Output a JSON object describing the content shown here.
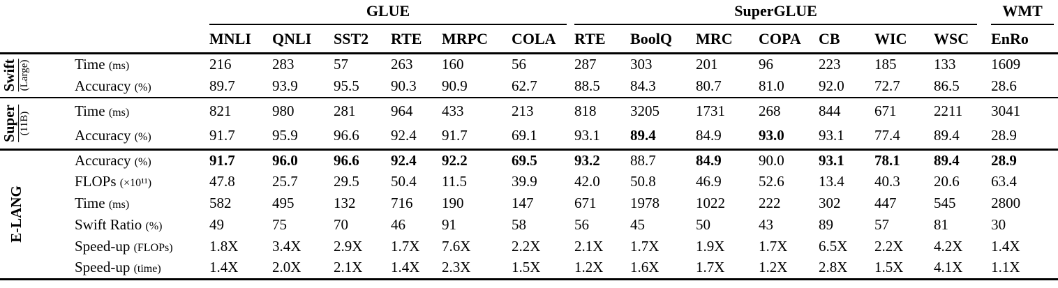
{
  "table": {
    "column_groups": [
      {
        "label": "GLUE",
        "span": 6
      },
      {
        "label": "SuperGLUE",
        "span": 7
      },
      {
        "label": "WMT",
        "span": 1
      }
    ],
    "columns": [
      "MNLI",
      "QNLI",
      "SST2",
      "RTE",
      "MRPC",
      "COLA",
      "RTE",
      "BoolQ",
      "MRC",
      "COPA",
      "CB",
      "WIC",
      "WSC",
      "EnRo"
    ],
    "sections": [
      {
        "group": "Swift",
        "group_suffix": "(Large)",
        "rows": [
          {
            "label": "Time",
            "suffix": "(ms)",
            "values": [
              "216",
              "283",
              "57",
              "263",
              "160",
              "56",
              "287",
              "303",
              "201",
              "96",
              "223",
              "185",
              "133",
              "1609"
            ],
            "bold": []
          },
          {
            "label": "Accuracy",
            "suffix": "(%)",
            "values": [
              "89.7",
              "93.9",
              "95.5",
              "90.3",
              "90.9",
              "62.7",
              "88.5",
              "84.3",
              "80.7",
              "81.0",
              "92.0",
              "72.7",
              "86.5",
              "28.6"
            ],
            "bold": []
          }
        ]
      },
      {
        "group": "Super",
        "group_suffix": "(11B)",
        "rows": [
          {
            "label": "Time",
            "suffix": "(ms)",
            "values": [
              "821",
              "980",
              "281",
              "964",
              "433",
              "213",
              "818",
              "3205",
              "1731",
              "268",
              "844",
              "671",
              "2211",
              "3041"
            ],
            "bold": []
          },
          {
            "label": "Accuracy",
            "suffix": "(%)",
            "values": [
              "91.7",
              "95.9",
              "96.6",
              "92.4",
              "91.7",
              "69.1",
              "93.1",
              "89.4",
              "84.9",
              "93.0",
              "93.1",
              "77.4",
              "89.4",
              "28.9"
            ],
            "bold": [
              7,
              9
            ]
          }
        ]
      },
      {
        "group": "E-LANG",
        "group_suffix": "",
        "rows": [
          {
            "label": "Accuracy",
            "suffix": "(%)",
            "values": [
              "91.7",
              "96.0",
              "96.6",
              "92.4",
              "92.2",
              "69.5",
              "93.2",
              "88.7",
              "84.9",
              "90.0",
              "93.1",
              "78.1",
              "89.4",
              "28.9"
            ],
            "bold": [
              0,
              1,
              2,
              3,
              4,
              5,
              6,
              8,
              10,
              11,
              12,
              13
            ]
          },
          {
            "label": "FLOPs",
            "suffix": "(×10¹¹)",
            "values": [
              "47.8",
              "25.7",
              "29.5",
              "50.4",
              "11.5",
              "39.9",
              "42.0",
              "50.8",
              "46.9",
              "52.6",
              "13.4",
              "40.3",
              "20.6",
              "63.4"
            ],
            "bold": []
          },
          {
            "label": "Time",
            "suffix": "(ms)",
            "values": [
              "582",
              "495",
              "132",
              "716",
              "190",
              "147",
              "671",
              "1978",
              "1022",
              "222",
              "302",
              "447",
              "545",
              "2800"
            ],
            "bold": []
          },
          {
            "label": "Swift Ratio",
            "suffix": "(%)",
            "values": [
              "49",
              "75",
              "70",
              "46",
              "91",
              "58",
              "56",
              "45",
              "50",
              "43",
              "89",
              "57",
              "81",
              "30"
            ],
            "bold": []
          },
          {
            "label": "Speed-up",
            "suffix": "(FLOPs)",
            "values": [
              "1.8X",
              "3.4X",
              "2.9X",
              "1.7X",
              "7.6X",
              "2.2X",
              "2.1X",
              "1.7X",
              "1.9X",
              "1.7X",
              "6.5X",
              "2.2X",
              "4.2X",
              "1.4X"
            ],
            "bold": []
          },
          {
            "label": "Speed-up",
            "suffix": "(time)",
            "values": [
              "1.4X",
              "2.0X",
              "2.1X",
              "1.4X",
              "2.3X",
              "1.5X",
              "1.2X",
              "1.6X",
              "1.7X",
              "1.2X",
              "2.8X",
              "1.5X",
              "4.1X",
              "1.1X"
            ],
            "bold": []
          }
        ]
      }
    ]
  }
}
